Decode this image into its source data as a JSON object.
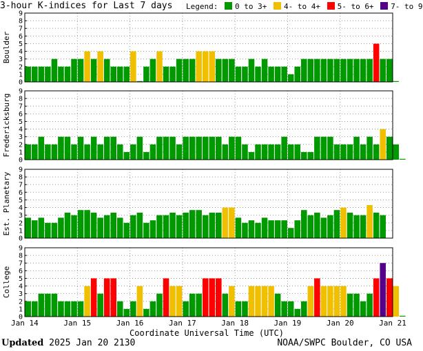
{
  "title": "3-hour K-indices for Last 7 days",
  "legend": {
    "label": "Legend:",
    "items": [
      {
        "label": "0 to 3+",
        "color": "#009900"
      },
      {
        "label": "4- to 4+",
        "color": "#f0c000"
      },
      {
        "label": "5- to 6+",
        "color": "#ff0000"
      },
      {
        "label": "7- to 9",
        "color": "#550088"
      }
    ]
  },
  "footer": {
    "updated_label": "Updated",
    "updated_value": "2025 Jan 20 2130",
    "credit": "NOAA/SWPC Boulder, CO USA"
  },
  "chart_data": {
    "type": "bar",
    "xlabel": "Coordinate Universal Time (UTC)",
    "x_ticks": [
      "Jan 14",
      "Jan 15",
      "Jan 16",
      "Jan 17",
      "Jan 18",
      "Jan 19",
      "Jan 20",
      "Jan 21"
    ],
    "ylim": [
      0,
      9
    ],
    "y_ticks": [
      "0",
      "1",
      "2",
      "3",
      "4",
      "5",
      "6",
      "7",
      "8",
      "9"
    ],
    "grid": true,
    "bins_per_day": 8,
    "series": [
      {
        "name": "Boulder",
        "values": [
          2,
          2,
          2,
          2,
          3,
          2,
          2,
          3,
          3,
          4,
          3,
          4,
          3,
          2,
          2,
          2,
          4,
          0,
          2,
          3,
          4,
          2,
          2,
          3,
          3,
          3,
          4,
          4,
          4,
          3,
          3,
          3,
          2,
          2,
          3,
          2,
          3,
          2,
          2,
          2,
          1,
          2,
          3,
          3,
          3,
          3,
          3,
          3,
          3,
          3,
          3,
          3,
          3,
          5,
          3,
          3,
          0
        ]
      },
      {
        "name": "Fredericksburg",
        "values": [
          2,
          2,
          3,
          2,
          2,
          3,
          3,
          2,
          3,
          2,
          3,
          2,
          3,
          3,
          2,
          1,
          2,
          3,
          1,
          2,
          3,
          3,
          3,
          2,
          3,
          3,
          3,
          3,
          3,
          3,
          2,
          3,
          3,
          2,
          1,
          2,
          2,
          2,
          2,
          3,
          2,
          2,
          1,
          1,
          3,
          3,
          3,
          2,
          2,
          2,
          3,
          2,
          3,
          2,
          4,
          3,
          2,
          0
        ]
      },
      {
        "name": "Est. Planetary",
        "values": [
          2.67,
          2.33,
          2.67,
          2,
          2,
          2.67,
          3.33,
          3,
          3.67,
          3.67,
          3.33,
          2.67,
          3,
          3.33,
          2.67,
          2,
          3,
          3.33,
          2,
          2.33,
          3,
          3,
          3.33,
          3,
          3.33,
          3.67,
          3.67,
          3,
          3.33,
          3.33,
          4,
          4,
          2.67,
          2,
          2.33,
          2,
          2.67,
          2.33,
          2.33,
          2.33,
          1.33,
          2.33,
          3.67,
          3,
          3.33,
          2.67,
          3,
          3.67,
          4,
          3.33,
          3,
          3,
          4.33,
          3.33,
          3
        ]
      },
      {
        "name": "College",
        "values": [
          2,
          2,
          3,
          3,
          3,
          2,
          2,
          2,
          2,
          4,
          5,
          3,
          5,
          5,
          2,
          1,
          2,
          4,
          1,
          2,
          3,
          5,
          4,
          4,
          2,
          3,
          3,
          5,
          5,
          5,
          3,
          4,
          2,
          2,
          4,
          4,
          4,
          4,
          3,
          2,
          2,
          1,
          2,
          4,
          5,
          4,
          4,
          4,
          4,
          3,
          3,
          2,
          3,
          5,
          7,
          5,
          4,
          0
        ]
      }
    ]
  }
}
